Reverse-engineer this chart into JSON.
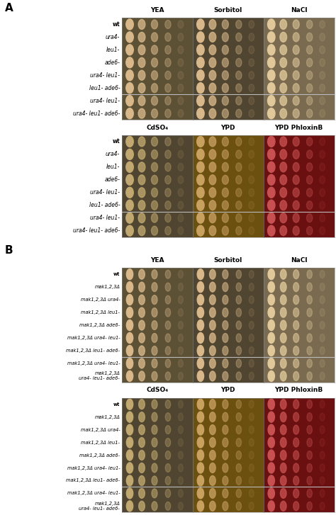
{
  "panel_A": {
    "label": "A",
    "top_row": {
      "col_headers": [
        "YEA",
        "Sorbitol",
        "NaCl"
      ],
      "row_labels": [
        "wt",
        "ura4-",
        "leu1-",
        "ade6-",
        "ura4- leu1-",
        "leu1- ade6-",
        "ura4- leu1-",
        "ura4- leu1- ade6-"
      ]
    },
    "bottom_row": {
      "col_headers": [
        "CdSO₄",
        "YPD",
        "YPD PhloxinB"
      ],
      "row_labels": [
        "wt",
        "ura4-",
        "leu1-",
        "ade6-",
        "ura4- leu1-",
        "leu1- ade6-",
        "ura4- leu1-",
        "ura4- leu1- ade6-"
      ]
    }
  },
  "panel_B": {
    "label": "B",
    "top_row": {
      "col_headers": [
        "YEA",
        "Sorbitol",
        "NaCl"
      ],
      "row_labels": [
        "wt",
        "mak1,2,3Δ",
        "mak1,2,3Δ ura4-",
        "mak1,2,3Δ leu1-",
        "mak1,2,3Δ ade6-",
        "mak1,2,3Δ ura4- leu1-",
        "mak1,2,3Δ leu1- ade6-",
        "mak1,2,3Δ ura4- leu1-",
        "mak1,2,3Δ\nura4- leu1- ade6-"
      ]
    },
    "bottom_row": {
      "col_headers": [
        "CdSO₄",
        "YPD",
        "YPD PhloxinB"
      ],
      "row_labels": [
        "wt",
        "mak1,2,3Δ",
        "mak1,2,3Δ ura4-",
        "mak1,2,3Δ leu1-",
        "mak1,2,3Δ ade6-",
        "mak1,2,3Δ ura4- leu1-",
        "mak1,2,3Δ leu1- ade6-",
        "mak1,2,3Δ ura4- leu1-",
        "mak1,2,3Δ\nura4- leu1- ade6-"
      ]
    }
  },
  "colors": {
    "yea_bg": "#5C5035",
    "sorbitol_bg": "#504530",
    "nacl_bg": "#7A6B50",
    "cdso4_bg": "#504530",
    "ypd_bg": "#6B5010",
    "phloxinb_bg": "#6B1010",
    "spot_beige": "#D8B88A",
    "spot_nacl": "#E0C89A",
    "spot_ypd": "#C8A060",
    "spot_phloxin": "#C85050",
    "spot_cdso4": "#C0A870"
  },
  "figure_bg": "#FFFFFF",
  "panel_A_row_labels_top": [
    "wt",
    "ura4-",
    "leu1-",
    "ade6-",
    "ura4- leu1-",
    "leu1- ade6-",
    "ura4- leu1-",
    "ura4- leu1- ade6-"
  ],
  "panel_A_row_labels_bot": [
    "wt",
    "ura4-",
    "leu1-",
    "ade6-",
    "ura4- leu1-",
    "leu1- ade6-",
    "ura4- leu1-",
    "ura4- leu1- ade6-"
  ],
  "panel_B_row_labels_top": [
    "wt",
    "mak1,2,3Δ",
    "mak1,2,3Δ ura4-",
    "mak1,2,3Δ leu1-",
    "mak1,2,3Δ ade6-",
    "mak1,2,3Δ ura4- leu1-",
    "mak1,2,3Δ leu1- ade6-",
    "mak1,2,3Δ ura4- leu1-",
    "mak1,2,3Δ\nura4- leu1- ade6-"
  ],
  "panel_B_row_labels_bot": [
    "wt",
    "mak1,2,3Δ",
    "mak1,2,3Δ ura4-",
    "mak1,2,3Δ leu1-",
    "mak1,2,3Δ ade6-",
    "mak1,2,3Δ ura4- leu1-",
    "mak1,2,3Δ leu1- ade6-",
    "mak1,2,3Δ ura4- leu1-",
    "mak1,2,3Δ\nura4- leu1- ade6-"
  ],
  "col_headers_top": [
    "YEA",
    "Sorbitol",
    "NaCl"
  ],
  "col_headers_bot": [
    "CdSO₄",
    "YPD",
    "YPD PhloxinB"
  ]
}
